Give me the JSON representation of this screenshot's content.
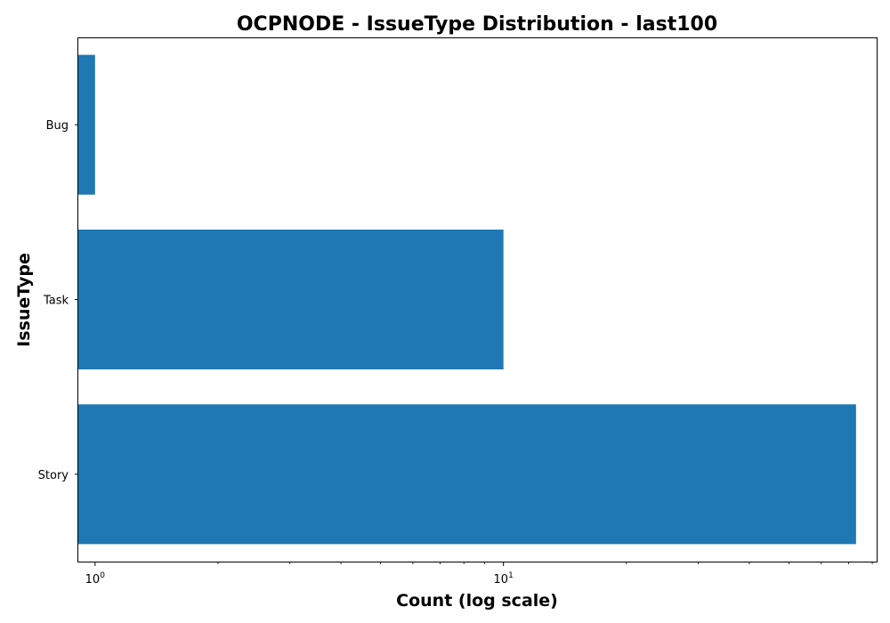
{
  "chart_data": {
    "type": "bar",
    "orientation": "horizontal",
    "title": "OCPNODE - IssueType Distribution - last100",
    "xlabel": "Count (log scale)",
    "ylabel": "IssueType",
    "x_scale": "log",
    "xlim": [
      0.91,
      82
    ],
    "xticks": [
      {
        "base": "10",
        "exp": "0"
      },
      {
        "base": "10",
        "exp": "1"
      }
    ],
    "categories": [
      "Bug",
      "Task",
      "Story"
    ],
    "values": [
      1,
      10,
      73
    ],
    "bar_color": "#1f77b4",
    "grid": false,
    "legend": "none"
  }
}
